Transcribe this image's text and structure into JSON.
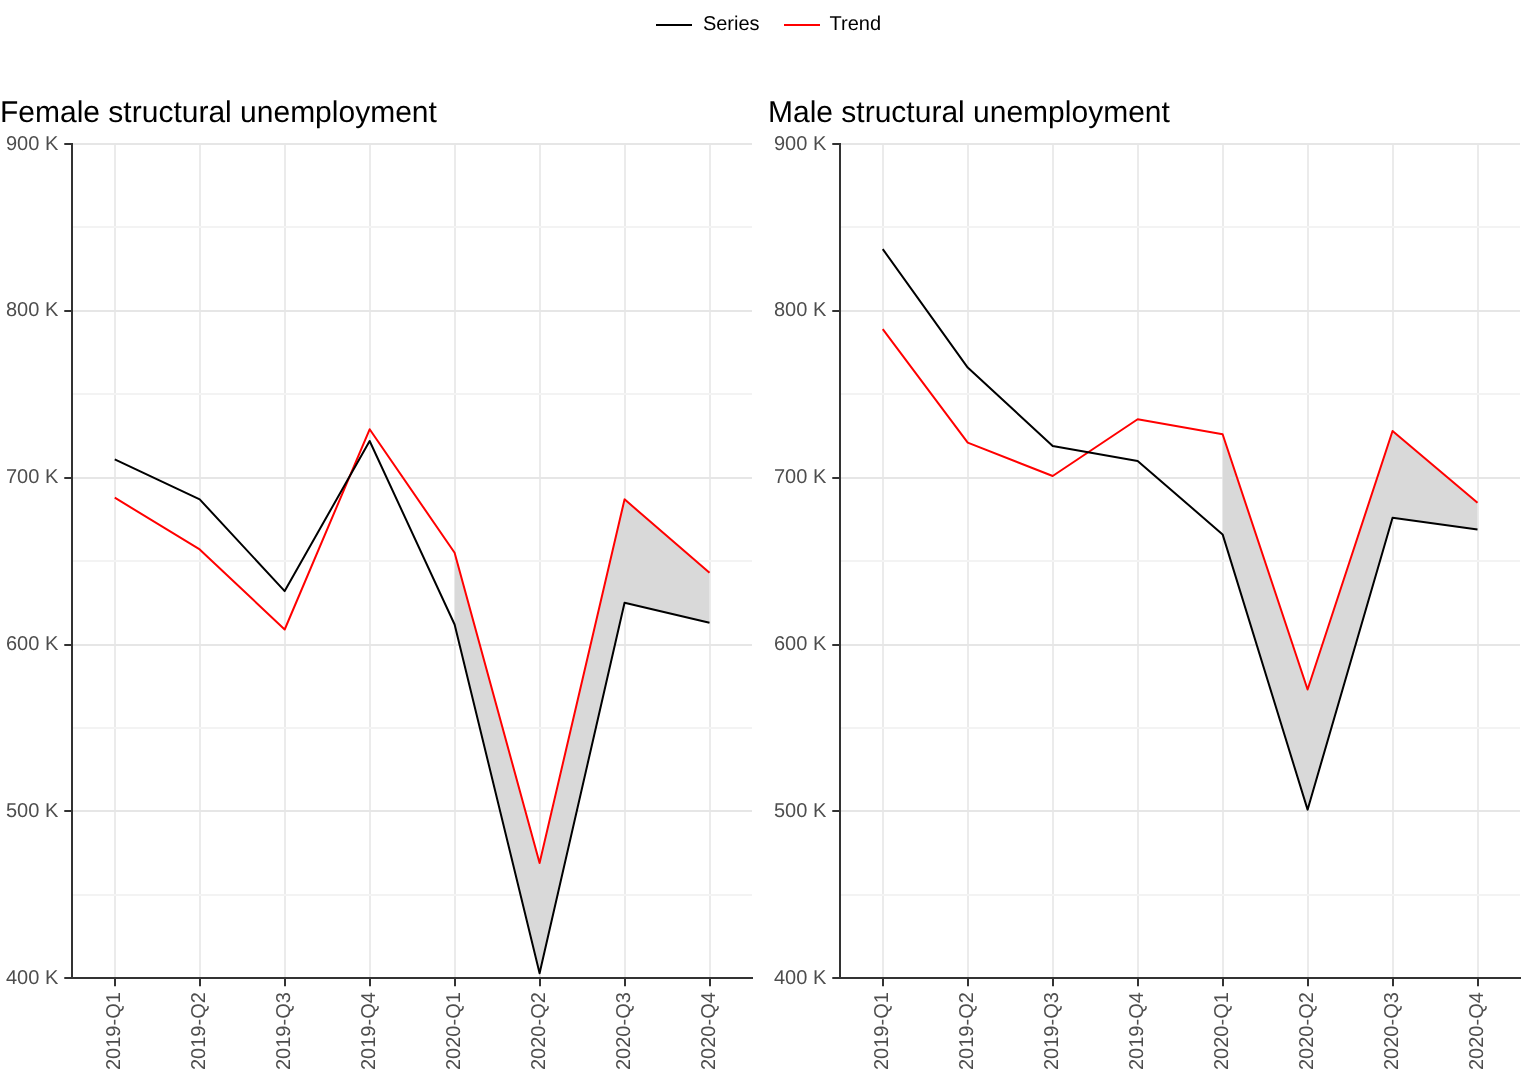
{
  "chart_data": [
    {
      "type": "line",
      "title": "Female structural unemployment",
      "legend": "top",
      "grid": true,
      "categories": [
        "2019-Q1",
        "2019-Q2",
        "2019-Q3",
        "2019-Q4",
        "2020-Q1",
        "2020-Q2",
        "2020-Q3",
        "2020-Q4"
      ],
      "ylim": [
        400,
        900
      ],
      "yticks": [
        {
          "value": 400,
          "label": "400 K"
        },
        {
          "value": 450,
          "label": null
        },
        {
          "value": 500,
          "label": "500 K"
        },
        {
          "value": 550,
          "label": null
        },
        {
          "value": 600,
          "label": "600 K"
        },
        {
          "value": 650,
          "label": null
        },
        {
          "value": 700,
          "label": "700 K"
        },
        {
          "value": 750,
          "label": null
        },
        {
          "value": 800,
          "label": "800 K"
        },
        {
          "value": 850,
          "label": null
        },
        {
          "value": 900,
          "label": "900 K"
        }
      ],
      "series": [
        {
          "name": "Series",
          "color": "#000000",
          "values": [
            711,
            687,
            632,
            722,
            612,
            403,
            625,
            613
          ]
        },
        {
          "name": "Trend",
          "color": "#ff0000",
          "values": [
            688,
            657,
            609,
            729,
            655,
            469,
            687,
            643
          ],
          "lower": [
            null,
            null,
            null,
            null,
            612,
            403,
            625,
            613
          ],
          "upper": [
            null,
            null,
            null,
            null,
            655,
            469,
            687,
            643
          ]
        }
      ]
    },
    {
      "type": "line",
      "title": "Male structural unemployment",
      "grid": true,
      "categories": [
        "2019-Q1",
        "2019-Q2",
        "2019-Q3",
        "2019-Q4",
        "2020-Q1",
        "2020-Q2",
        "2020-Q3",
        "2020-Q4"
      ],
      "ylim": [
        400,
        900
      ],
      "yticks": [
        {
          "value": 400,
          "label": "400 K"
        },
        {
          "value": 450,
          "label": null
        },
        {
          "value": 500,
          "label": "500 K"
        },
        {
          "value": 550,
          "label": null
        },
        {
          "value": 600,
          "label": "600 K"
        },
        {
          "value": 650,
          "label": null
        },
        {
          "value": 700,
          "label": "700 K"
        },
        {
          "value": 750,
          "label": null
        },
        {
          "value": 800,
          "label": "800 K"
        },
        {
          "value": 850,
          "label": null
        },
        {
          "value": 900,
          "label": "900 K"
        }
      ],
      "series": [
        {
          "color": "#000000",
          "values": [
            837,
            766,
            719,
            710,
            666,
            501,
            676,
            669
          ]
        },
        {
          "color": "#ff0000",
          "values": [
            789,
            721,
            701,
            735,
            726,
            573,
            728,
            685
          ],
          "lower": [
            null,
            null,
            null,
            null,
            666,
            501,
            676,
            669
          ],
          "upper": [
            null,
            null,
            null,
            null,
            726,
            573,
            728,
            685
          ]
        }
      ]
    }
  ]
}
